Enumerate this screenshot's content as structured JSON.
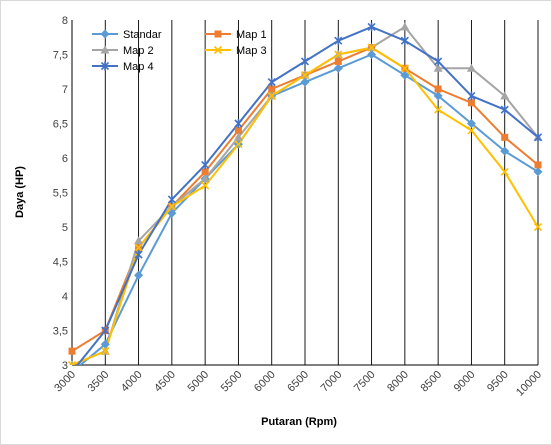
{
  "chart_data": {
    "type": "line",
    "title": "",
    "xlabel": "Putaran (Rpm)",
    "ylabel": "Daya (HP)",
    "x": [
      "3000",
      "3500",
      "4000",
      "4500",
      "5000",
      "5500",
      "6000",
      "6500",
      "7000",
      "7500",
      "8000",
      "8500",
      "9000",
      "9500",
      "10000"
    ],
    "ylim": [
      3,
      8
    ],
    "yticks": [
      "3",
      "3,5",
      "4",
      "4,5",
      "5",
      "5,5",
      "6",
      "6,5",
      "7",
      "7,5",
      "8"
    ],
    "grid": {
      "vertical": true,
      "horizontal": false
    },
    "legend": "top-left",
    "series": [
      {
        "name": "Standar",
        "color": "#5b9bd5",
        "marker": "diamond",
        "values": [
          2.9,
          3.3,
          4.3,
          5.2,
          5.7,
          6.2,
          6.9,
          7.1,
          7.3,
          7.5,
          7.2,
          6.9,
          6.5,
          6.1,
          5.8
        ]
      },
      {
        "name": "Map 1",
        "color": "#ed7d31",
        "marker": "square",
        "values": [
          3.2,
          3.5,
          4.7,
          5.3,
          5.8,
          6.4,
          7.0,
          7.2,
          7.4,
          7.6,
          7.3,
          7.0,
          6.8,
          6.3,
          5.9
        ]
      },
      {
        "name": "Map 2",
        "color": "#a5a5a5",
        "marker": "triangle",
        "values": [
          3.0,
          3.2,
          4.8,
          5.3,
          5.7,
          6.3,
          6.9,
          7.2,
          7.5,
          7.6,
          7.9,
          7.3,
          7.3,
          6.9,
          6.3
        ]
      },
      {
        "name": "Map 3",
        "color": "#ffc000",
        "marker": "x",
        "values": [
          3.0,
          3.2,
          4.7,
          5.3,
          5.6,
          6.2,
          6.9,
          7.2,
          7.5,
          7.6,
          7.3,
          6.7,
          6.4,
          5.8,
          5.0
        ]
      },
      {
        "name": "Map 4",
        "color": "#4472c4",
        "marker": "star",
        "values": [
          2.9,
          3.5,
          4.6,
          5.4,
          5.9,
          6.5,
          7.1,
          7.4,
          7.7,
          7.9,
          7.7,
          7.4,
          6.9,
          6.7,
          6.3
        ]
      }
    ]
  }
}
